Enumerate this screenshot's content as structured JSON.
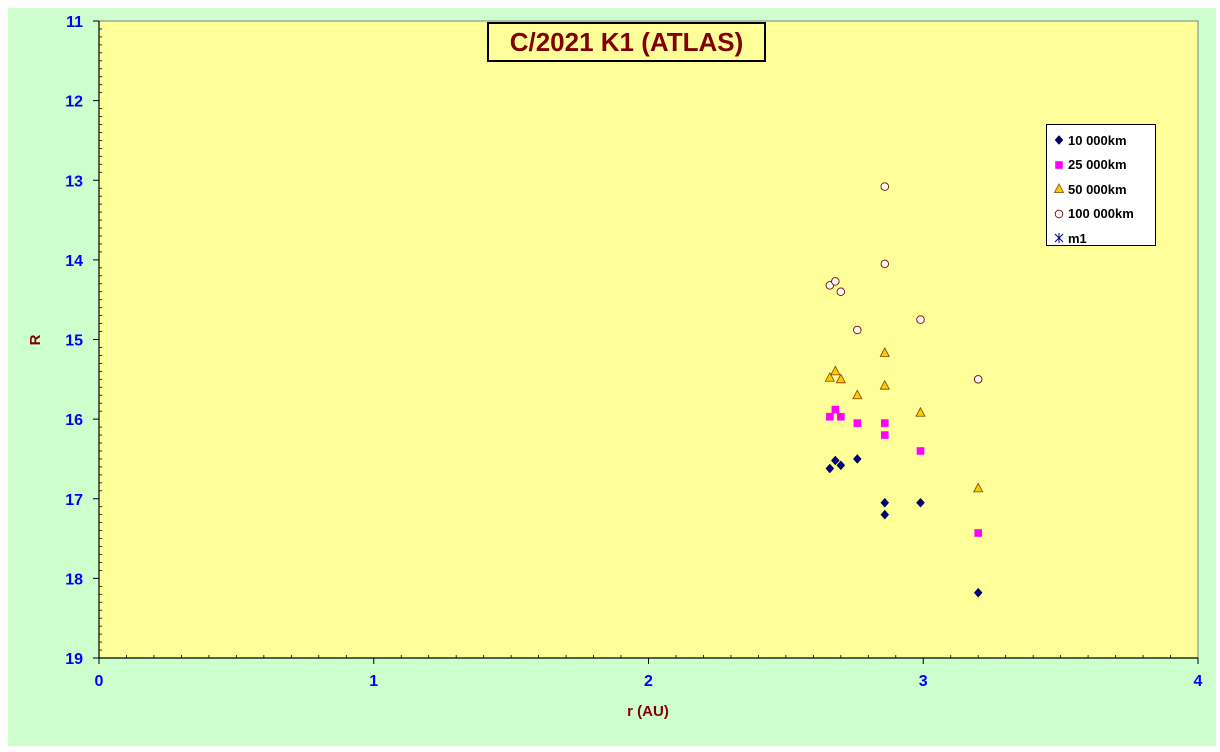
{
  "chart_data": {
    "type": "scatter",
    "title": "C/2021 K1 (ATLAS)",
    "xlabel": "r (AU)",
    "ylabel": "R",
    "xlim": [
      0,
      4
    ],
    "ylim": [
      11,
      19
    ],
    "y_reversed": true,
    "x_ticks": [
      "0",
      "1",
      "2",
      "3",
      "4"
    ],
    "y_ticks": [
      "11",
      "12",
      "13",
      "14",
      "15",
      "16",
      "17",
      "18",
      "19"
    ],
    "grid": false,
    "legend_position": "top-right",
    "plot_background": "#ffff99",
    "outer_background": "#ccffcc",
    "series": [
      {
        "name": "10 000km",
        "marker": "diamond",
        "color": "#000080",
        "points": [
          [
            2.66,
            16.62
          ],
          [
            2.68,
            16.52
          ],
          [
            2.7,
            16.58
          ],
          [
            2.76,
            16.5
          ],
          [
            2.86,
            17.05
          ],
          [
            2.86,
            17.2
          ],
          [
            2.99,
            17.05
          ],
          [
            3.2,
            18.18
          ]
        ]
      },
      {
        "name": "25 000km",
        "marker": "square",
        "color": "#ff00ff",
        "points": [
          [
            2.66,
            15.97
          ],
          [
            2.68,
            15.88
          ],
          [
            2.7,
            15.97
          ],
          [
            2.76,
            16.05
          ],
          [
            2.86,
            16.05
          ],
          [
            2.86,
            16.2
          ],
          [
            2.99,
            16.4
          ],
          [
            3.2,
            17.43
          ]
        ]
      },
      {
        "name": "50 000km",
        "marker": "triangle",
        "color": "#ffcc00",
        "points": [
          [
            2.66,
            15.48
          ],
          [
            2.68,
            15.4
          ],
          [
            2.7,
            15.5
          ],
          [
            2.76,
            15.7
          ],
          [
            2.86,
            15.17
          ],
          [
            2.86,
            15.58
          ],
          [
            2.99,
            15.92
          ],
          [
            3.2,
            16.87
          ]
        ]
      },
      {
        "name": "100 000km",
        "marker": "circle",
        "color": "#800000",
        "points": [
          [
            2.66,
            14.32
          ],
          [
            2.68,
            14.27
          ],
          [
            2.7,
            14.4
          ],
          [
            2.76,
            14.88
          ],
          [
            2.86,
            13.08
          ],
          [
            2.86,
            14.05
          ],
          [
            2.99,
            14.75
          ],
          [
            3.2,
            15.5
          ]
        ]
      },
      {
        "name": "m1",
        "marker": "star",
        "color": "#000080",
        "points": []
      }
    ]
  }
}
